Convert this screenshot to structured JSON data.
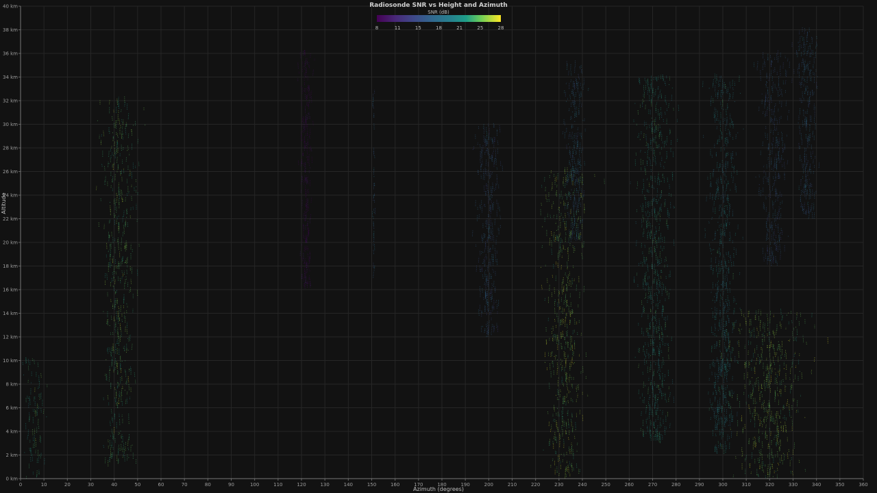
{
  "chart_data": {
    "type": "scatter",
    "title": "Radiosonde SNR vs Height and Azimuth",
    "xlabel": "Azimuth (degrees)",
    "ylabel": "Altitude",
    "xlim": [
      0,
      360
    ],
    "ylim": [
      0,
      40
    ],
    "x_ticks": [
      "0",
      "10",
      "20",
      "30",
      "40",
      "50",
      "60",
      "70",
      "80",
      "90",
      "100",
      "110",
      "120",
      "130",
      "140",
      "150",
      "160",
      "170",
      "180",
      "190",
      "200",
      "210",
      "220",
      "230",
      "240",
      "250",
      "260",
      "270",
      "280",
      "290",
      "300",
      "310",
      "320",
      "330",
      "340",
      "350",
      "360"
    ],
    "y_ticks": [
      "0 km",
      "2 km",
      "4 km",
      "6 km",
      "8 km",
      "10 km",
      "12 km",
      "14 km",
      "16 km",
      "18 km",
      "20 km",
      "22 km",
      "24 km",
      "26 km",
      "28 km",
      "30 km",
      "32 km",
      "34 km",
      "36 km",
      "38 km",
      "40 km"
    ],
    "grid": true,
    "colorbar": {
      "label": "SNR (dB)",
      "ticks": [
        "8",
        "11",
        "15",
        "18",
        "21",
        "25",
        "28"
      ],
      "range": [
        8,
        28
      ],
      "colormap": "viridis",
      "placement": "top-center"
    },
    "clusters": [
      {
        "azimuth": 42,
        "alt_range": [
          1,
          32
        ],
        "spread": 12,
        "snr": 24,
        "density": 520
      },
      {
        "azimuth": 6,
        "alt_range": [
          0,
          10
        ],
        "spread": 8,
        "snr": 23,
        "density": 90
      },
      {
        "azimuth": 122,
        "alt_range": [
          16,
          36
        ],
        "spread": 4,
        "snr": 8,
        "density": 260
      },
      {
        "azimuth": 151,
        "alt_range": [
          17,
          33
        ],
        "spread": 1,
        "snr": 17,
        "density": 40
      },
      {
        "azimuth": 200,
        "alt_range": [
          12,
          30
        ],
        "spread": 8,
        "snr": 16,
        "density": 320
      },
      {
        "azimuth": 232,
        "alt_range": [
          0,
          26
        ],
        "spread": 14,
        "snr": 25,
        "density": 520
      },
      {
        "azimuth": 237,
        "alt_range": [
          20,
          35
        ],
        "spread": 7,
        "snr": 17,
        "density": 260
      },
      {
        "azimuth": 271,
        "alt_range": [
          3,
          34
        ],
        "spread": 12,
        "snr": 22,
        "density": 700
      },
      {
        "azimuth": 300,
        "alt_range": [
          2,
          34
        ],
        "spread": 10,
        "snr": 20,
        "density": 650
      },
      {
        "azimuth": 322,
        "alt_range": [
          18,
          36
        ],
        "spread": 10,
        "snr": 16,
        "density": 320
      },
      {
        "azimuth": 336,
        "alt_range": [
          22,
          38
        ],
        "spread": 7,
        "snr": 17,
        "density": 260
      },
      {
        "azimuth": 320,
        "alt_range": [
          0,
          14
        ],
        "spread": 25,
        "snr": 25,
        "density": 500
      }
    ]
  }
}
